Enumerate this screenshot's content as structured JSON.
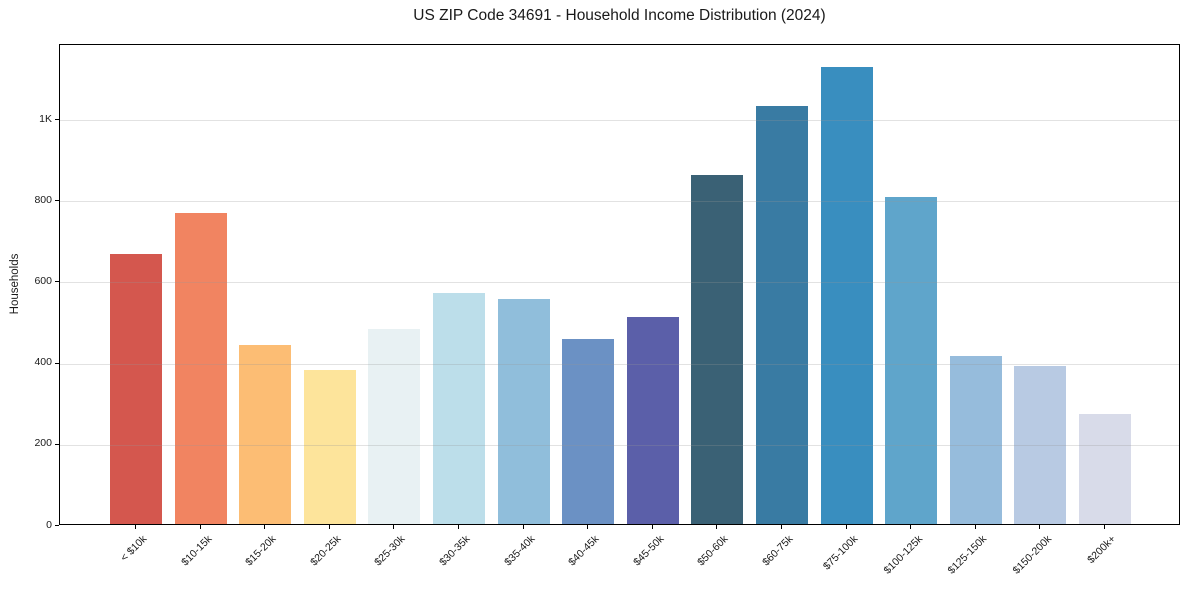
{
  "chart_data": {
    "type": "bar",
    "title": "US ZIP Code 34691 - Household Income Distribution (2024)",
    "xlabel": "",
    "ylabel": "Households",
    "categories": [
      "< $10k",
      "$10-15k",
      "$15-20k",
      "$20-25k",
      "$25-30k",
      "$30-35k",
      "$35-40k",
      "$40-45k",
      "$45-50k",
      "$50-60k",
      "$60-75k",
      "$75-100k",
      "$100-125k",
      "$125-150k",
      "$150-200k",
      "$200k+"
    ],
    "values": [
      665,
      765,
      440,
      380,
      480,
      570,
      555,
      457,
      510,
      860,
      1030,
      1125,
      805,
      415,
      390,
      272
    ],
    "bar_colors": [
      "#d4574e",
      "#f18461",
      "#fcbd74",
      "#fde49b",
      "#e8f1f3",
      "#bcdeea",
      "#90bedb",
      "#6b91c4",
      "#5b5fa9",
      "#3a6175",
      "#397ba3",
      "#398ebf",
      "#5fa5cb",
      "#96bcdc",
      "#b8cae3",
      "#d8dbe9"
    ],
    "ylim": [
      0,
      1185
    ],
    "yticks": [
      0,
      200,
      400,
      600,
      800,
      1000
    ],
    "ytick_labels": [
      "0",
      "200",
      "400",
      "600",
      "800",
      "1K"
    ],
    "grid": "horizontal",
    "grid_over_bars": true,
    "grid_color_rgba": "rgba(150,150,150,0.28)",
    "spine_color": "#000000",
    "background_color": "#ffffff",
    "legend": "none"
  }
}
